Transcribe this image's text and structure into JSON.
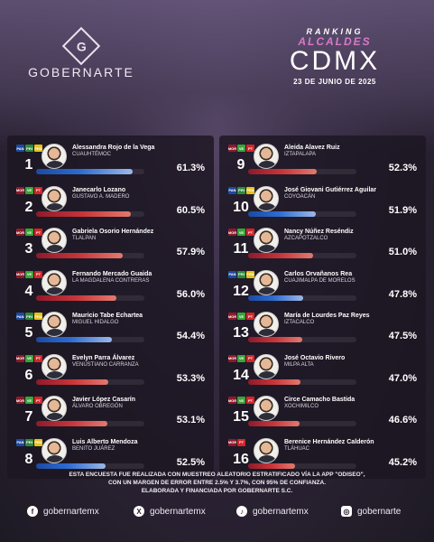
{
  "brand": {
    "logo_letter": "G",
    "name": "GOBERNARTE"
  },
  "title": {
    "ranking": "RANKING",
    "alcaldes": "ALCALDES",
    "cdmx": "CDMX",
    "date": "23 DE JUNIO DE 2025"
  },
  "left": [
    {
      "rank": "1",
      "name": "Alessandra Rojo de la Vega",
      "place": "CUAUHTÉMOC",
      "pct": "61.3%",
      "value": 61.3,
      "party": "pan",
      "badges": [
        "PAN",
        "PRI",
        "PRD"
      ]
    },
    {
      "rank": "2",
      "name": "Janecarlo Lozano",
      "place": "GUSTAVO A. MADERO",
      "pct": "60.5%",
      "value": 60.5,
      "party": "morena",
      "badges": [
        "MOR",
        "VE",
        "PT"
      ]
    },
    {
      "rank": "3",
      "name": "Gabriela Osorio Hernández",
      "place": "TLALPAN",
      "pct": "57.9%",
      "value": 57.9,
      "party": "morena",
      "badges": [
        "MOR",
        "VE",
        "PT"
      ]
    },
    {
      "rank": "4",
      "name": "Fernando Mercado Guaida",
      "place": "LA MAGDALENA CONTRERAS",
      "pct": "56.0%",
      "value": 56.0,
      "party": "morena",
      "badges": [
        "MOR",
        "VE",
        "PT"
      ]
    },
    {
      "rank": "5",
      "name": "Mauricio Tabe Echartea",
      "place": "MIGUEL HIDALGO",
      "pct": "54.4%",
      "value": 54.4,
      "party": "pan",
      "badges": [
        "PAN",
        "PRI",
        "PRD"
      ]
    },
    {
      "rank": "6",
      "name": "Evelyn Parra Álvarez",
      "place": "VENUSTIANO CARRANZA",
      "pct": "53.3%",
      "value": 53.3,
      "party": "morena",
      "badges": [
        "MOR",
        "VE",
        "PT"
      ]
    },
    {
      "rank": "7",
      "name": "Javier López Casarín",
      "place": "ÁLVARO OBREGÓN",
      "pct": "53.1%",
      "value": 53.1,
      "party": "morena",
      "badges": [
        "MOR",
        "VE",
        "PT"
      ]
    },
    {
      "rank": "8",
      "name": "Luis Alberto Mendoza",
      "place": "BENITO JUÁREZ",
      "pct": "52.5%",
      "value": 52.5,
      "party": "pan",
      "badges": [
        "PAN",
        "PRI",
        "PRD"
      ]
    }
  ],
  "right": [
    {
      "rank": "9",
      "name": "Aleida Alavez Ruiz",
      "place": "IZTAPALAPA",
      "pct": "52.3%",
      "value": 52.3,
      "party": "morena",
      "badges": [
        "MOR",
        "VE",
        "PT"
      ]
    },
    {
      "rank": "10",
      "name": "José Giovani Gutiérrez Aguilar",
      "place": "COYOACÁN",
      "pct": "51.9%",
      "value": 51.9,
      "party": "pan",
      "badges": [
        "PAN",
        "PRI",
        "PRD"
      ]
    },
    {
      "rank": "11",
      "name": "Nancy Núñez Reséndiz",
      "place": "AZCAPOTZALCO",
      "pct": "51.0%",
      "value": 51.0,
      "party": "morena",
      "badges": [
        "MOR",
        "VE",
        "PT"
      ]
    },
    {
      "rank": "12",
      "name": "Carlos Orvañanos Rea",
      "place": "CUAJIMALPA DE MORELOS",
      "pct": "47.8%",
      "value": 47.8,
      "party": "pan",
      "badges": [
        "PAN",
        "PRI",
        "PRD"
      ]
    },
    {
      "rank": "13",
      "name": "María de Lourdes Paz Reyes",
      "place": "IZTACALCO",
      "pct": "47.5%",
      "value": 47.5,
      "party": "morena",
      "badges": [
        "MOR",
        "VE",
        "PT"
      ]
    },
    {
      "rank": "14",
      "name": "José Octavio Rivero",
      "place": "MILPA ALTA",
      "pct": "47.0%",
      "value": 47.0,
      "party": "morena",
      "badges": [
        "MOR",
        "VE",
        "PT"
      ]
    },
    {
      "rank": "15",
      "name": "Circe Camacho Bastida",
      "place": "XOCHIMILCO",
      "pct": "46.6%",
      "value": 46.6,
      "party": "morena",
      "badges": [
        "MOR",
        "VE",
        "PT"
      ]
    },
    {
      "rank": "16",
      "name": "Berenice Hernández Calderón",
      "place": "TLÁHUAC",
      "pct": "45.2%",
      "value": 45.2,
      "party": "morena",
      "badges": [
        "MOR",
        "PT"
      ]
    }
  ],
  "footnote": {
    "line1": "ESTA ENCUESTA FUE REALIZADA CON MUESTREO ALEATORIO ESTRATIFICADO VÍA LA APP \"ODISEO\",",
    "line2": "CON UN MARGEN DE ERROR ENTRE 2.5% Y 3.7%, CON 95% DE CONFIANZA.",
    "line3": "ELABORADA Y FINANCIADA POR GOBERNARTE S.C."
  },
  "socials": [
    {
      "icon": "facebook-icon",
      "glyph": "f",
      "handle": "gobernartemx"
    },
    {
      "icon": "x-icon",
      "glyph": "X",
      "handle": "gobernartemx"
    },
    {
      "icon": "tiktok-icon",
      "glyph": "♪",
      "handle": "gobernartemx"
    },
    {
      "icon": "instagram-icon",
      "glyph": "◎",
      "handle": "gobernarte"
    }
  ]
}
